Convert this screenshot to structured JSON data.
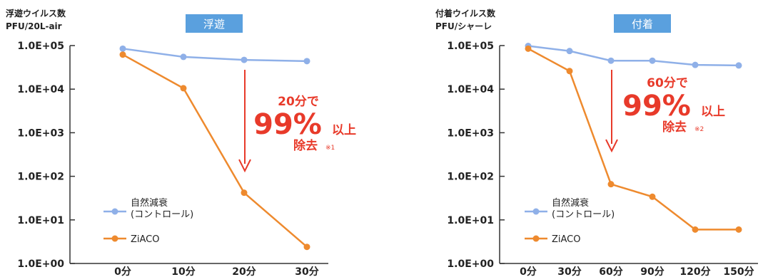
{
  "chart_data": [
    {
      "type": "line",
      "title": "浮遊",
      "ylabel_line1": "浮遊ウイルス数",
      "ylabel_line2": "PFU/20L-air",
      "yscale": "log",
      "ylim": [
        1,
        100000
      ],
      "yticks": [
        "1.0E+05",
        "1.0E+04",
        "1.0E+03",
        "1.0E+02",
        "1.0E+01",
        "1.0E+00"
      ],
      "categories": [
        "0分",
        "10分",
        "20分",
        "30分"
      ],
      "series": [
        {
          "name_line1": "自然減衰",
          "name_line2": "(コントロール)",
          "color": "#8fb0e8",
          "values": [
            85000,
            55000,
            47000,
            44000
          ]
        },
        {
          "name": "ZiACO",
          "color": "#ee8a2e",
          "values": [
            62000,
            10500,
            42,
            2.4
          ]
        }
      ],
      "annotation": {
        "time": "20分で",
        "big": "99%",
        "suffix": "以上",
        "line3": "除去",
        "note": "※1",
        "color": "#e83a2a"
      }
    },
    {
      "type": "line",
      "title": "付着",
      "ylabel_line1": "付着ウイルス数",
      "ylabel_line2": "PFU/シャーレ",
      "yscale": "log",
      "ylim": [
        1,
        100000
      ],
      "yticks": [
        "1.0E+05",
        "1.0E+04",
        "1.0E+03",
        "1.0E+02",
        "1.0E+01",
        "1.0E+00"
      ],
      "categories": [
        "0分",
        "30分",
        "60分",
        "90分",
        "120分",
        "150分"
      ],
      "series": [
        {
          "name_line1": "自然減衰",
          "name_line2": "(コントロール)",
          "color": "#8fb0e8",
          "values": [
            98000,
            75000,
            45000,
            45000,
            36000,
            35000
          ]
        },
        {
          "name": "ZiACO",
          "color": "#ee8a2e",
          "values": [
            85000,
            26000,
            66,
            34,
            6,
            6
          ]
        }
      ],
      "annotation": {
        "time": "60分で",
        "big": "99%",
        "suffix": "以上",
        "line3": "除去",
        "note": "※2",
        "color": "#e83a2a"
      }
    }
  ],
  "style": {
    "title_bg": "#5aa0de",
    "title_fg": "#ffffff",
    "axis": "#333333",
    "text": "#222222"
  }
}
